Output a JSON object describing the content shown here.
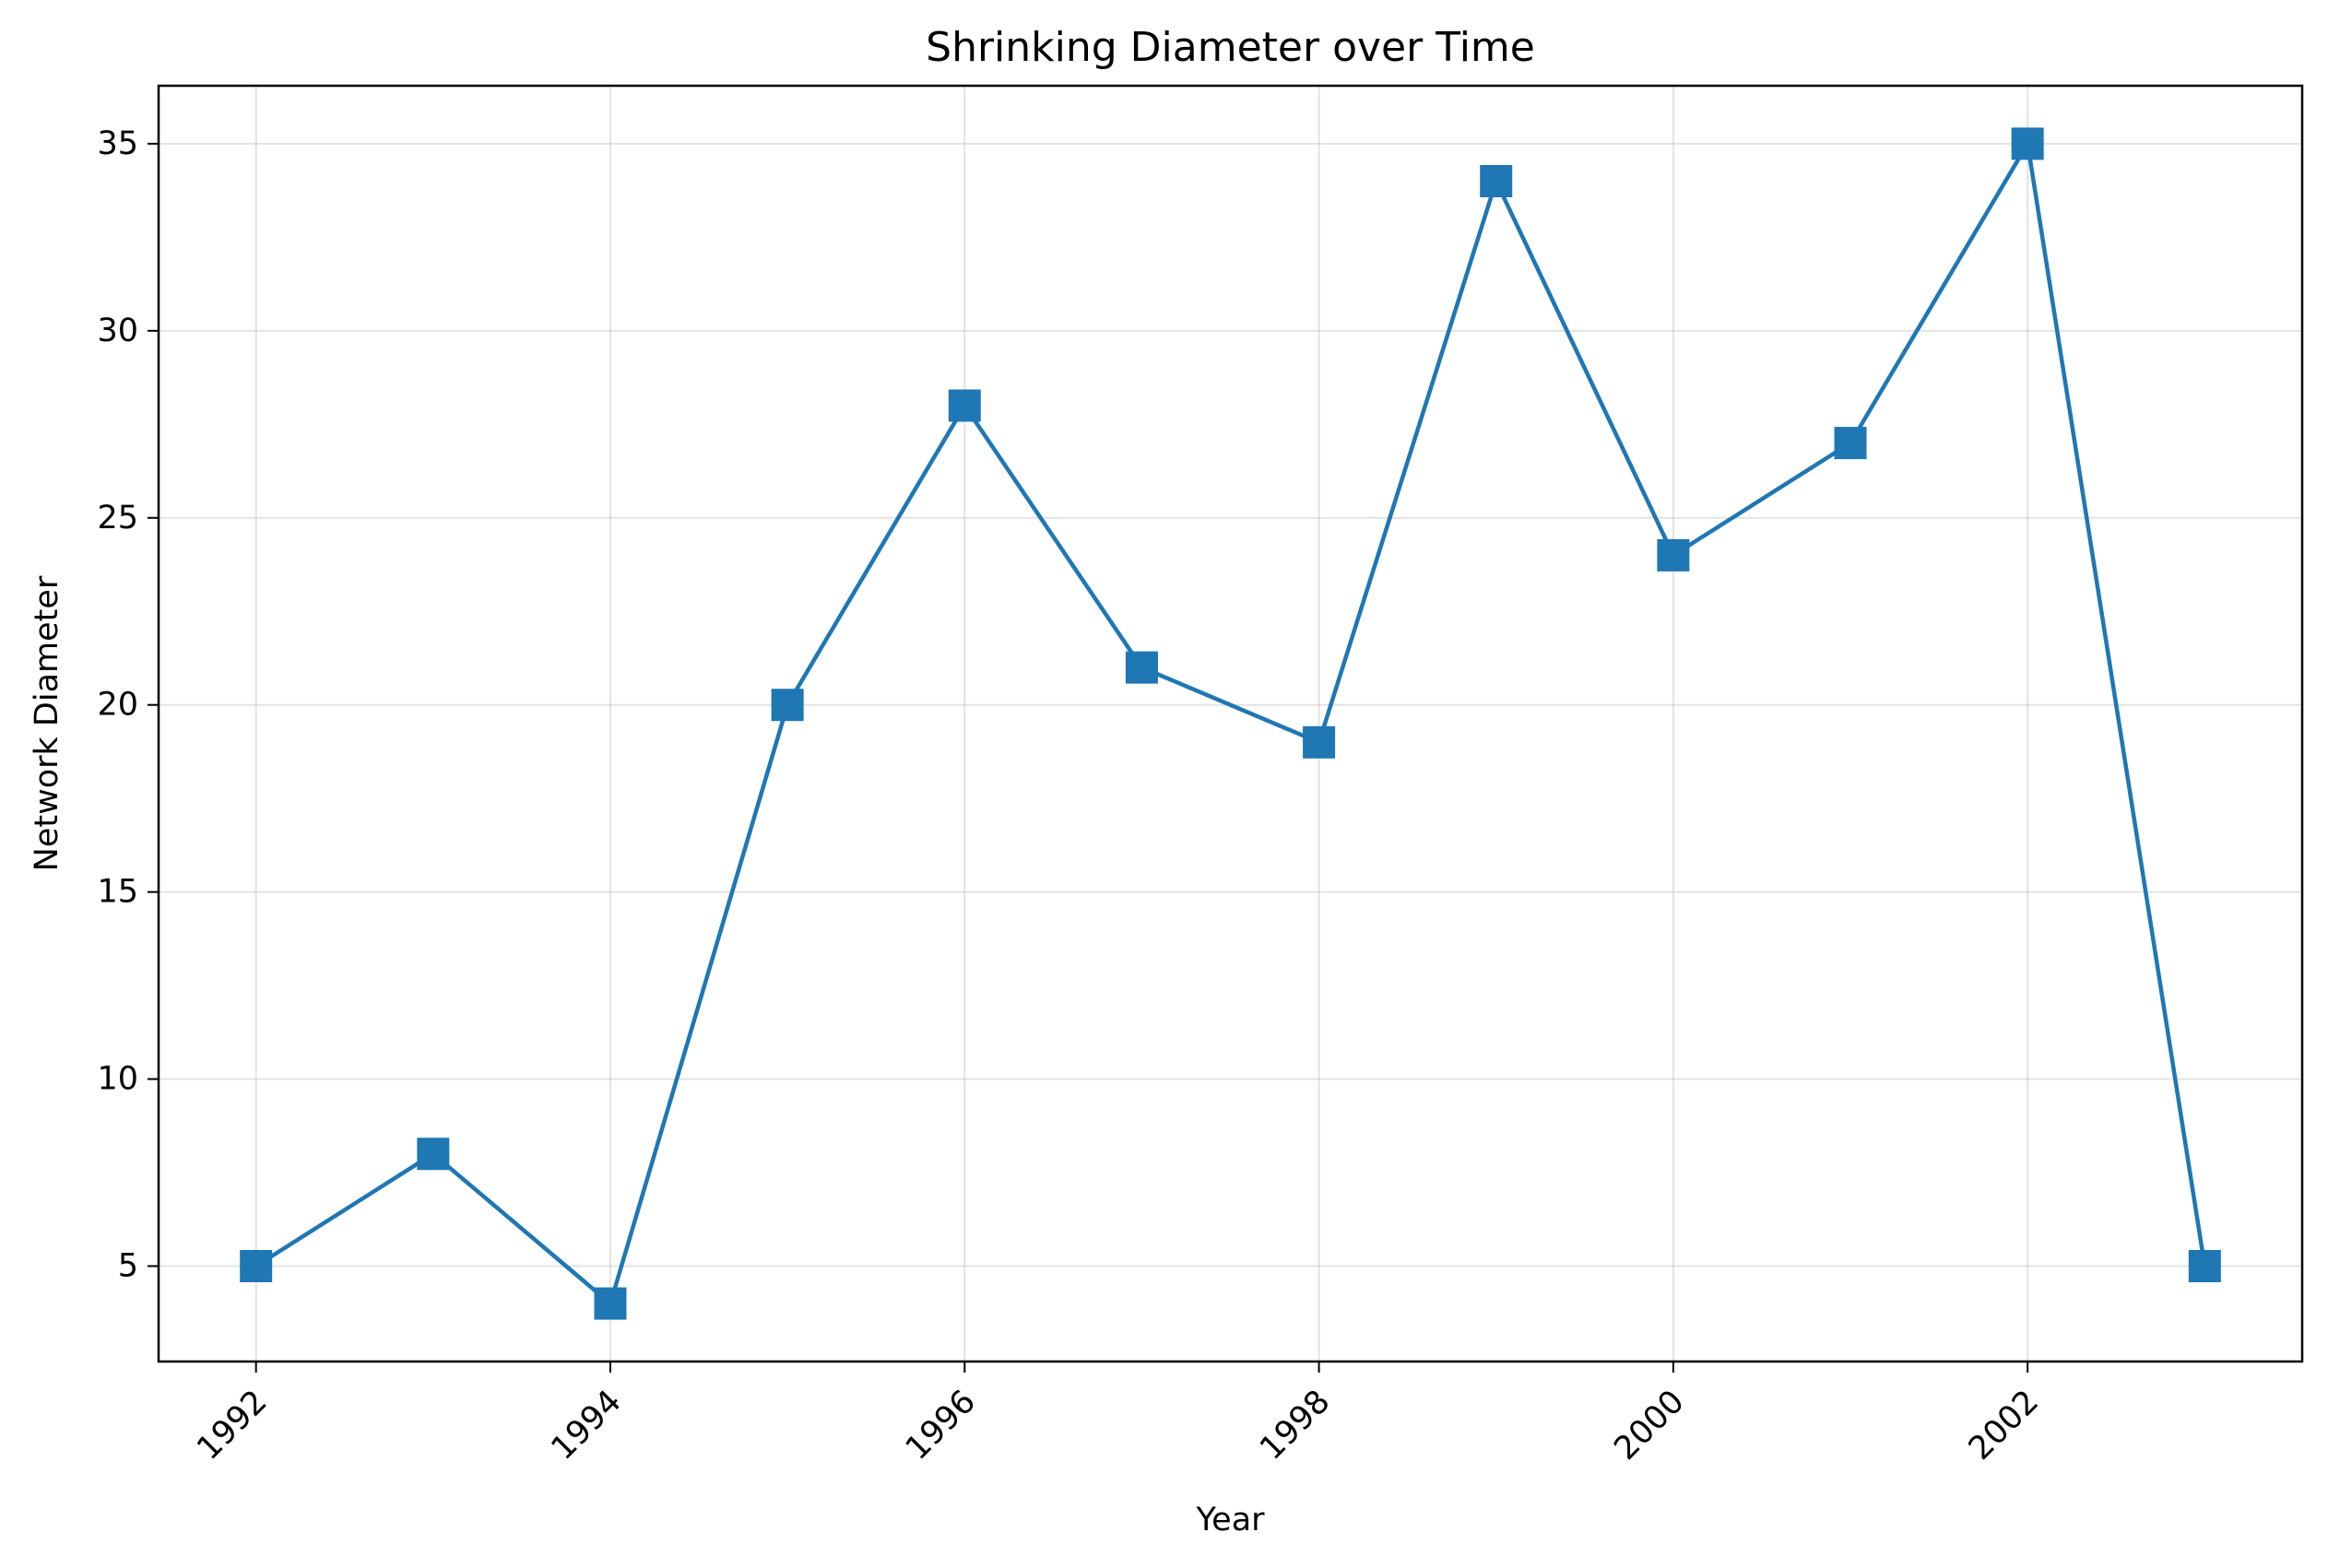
{
  "chart_data": {
    "type": "line",
    "title": "Shrinking Diameter over Time",
    "xlabel": "Year",
    "ylabel": "Network Diameter",
    "x": [
      1992,
      1993,
      1994,
      1995,
      1996,
      1997,
      1998,
      1999,
      2000,
      2001,
      2002,
      2003
    ],
    "series": [
      {
        "values": [
          5,
          8,
          4,
          20,
          28,
          21,
          19,
          34,
          24,
          27,
          35,
          5
        ],
        "color": "#1f77b4",
        "marker": "square"
      }
    ],
    "xlim": [
      1991.45,
      2003.55
    ],
    "ylim": [
      2.45,
      36.55
    ],
    "xticks": [
      1992,
      1994,
      1996,
      1998,
      2000,
      2002
    ],
    "xtick_labels": [
      "1992",
      "1994",
      "1996",
      "1998",
      "2000",
      "2002"
    ],
    "yticks": [
      5,
      10,
      15,
      20,
      25,
      30,
      35
    ],
    "ytick_labels": [
      "5",
      "10",
      "15",
      "20",
      "25",
      "30",
      "35"
    ],
    "grid": true,
    "legend": "none"
  }
}
